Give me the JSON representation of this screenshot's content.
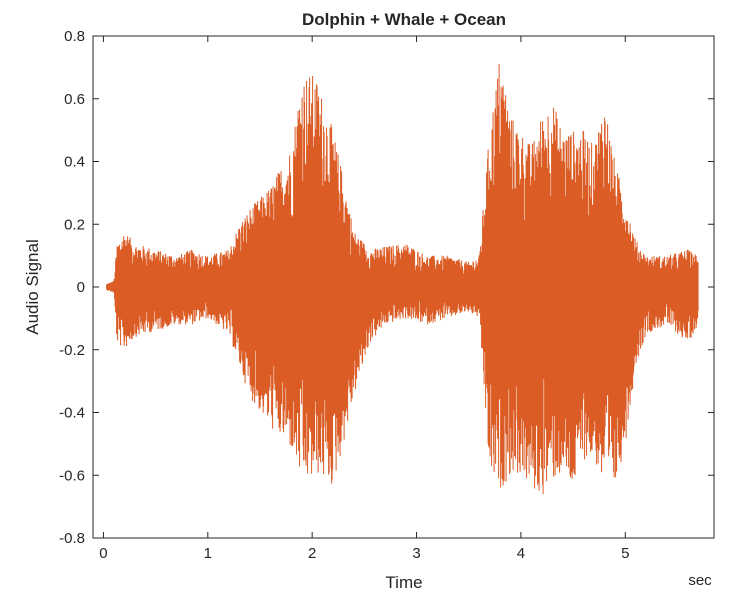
{
  "chart_data": {
    "type": "line",
    "title": "Dolphin + Whale + Ocean",
    "xlabel": "Time",
    "ylabel": "Audio Signal",
    "x_unit_label": "sec",
    "xlim": [
      -0.1,
      5.85
    ],
    "ylim": [
      -0.8,
      0.8
    ],
    "xticks": [
      0,
      1,
      2,
      3,
      4,
      5
    ],
    "yticks": [
      -0.8,
      -0.6,
      -0.4,
      -0.2,
      0,
      0.2,
      0.4,
      0.6,
      0.8
    ],
    "grid": false,
    "series": [
      {
        "color": "#D95319",
        "x_start": 0.03,
        "x_end": 5.7,
        "envelope": {
          "x": [
            0.03,
            0.1,
            0.13,
            0.2,
            0.3,
            0.5,
            0.7,
            0.85,
            1.0,
            1.2,
            1.3,
            1.4,
            1.6,
            1.8,
            1.9,
            2.0,
            2.05,
            2.2,
            2.3,
            2.4,
            2.55,
            2.7,
            2.9,
            3.1,
            3.3,
            3.5,
            3.6,
            3.7,
            3.8,
            3.9,
            4.0,
            4.1,
            4.2,
            4.3,
            4.4,
            4.5,
            4.6,
            4.7,
            4.8,
            4.9,
            5.0,
            5.1,
            5.2,
            5.4,
            5.6,
            5.7
          ],
          "max": [
            0.01,
            0.02,
            0.14,
            0.18,
            0.14,
            0.12,
            0.1,
            0.12,
            0.1,
            0.12,
            0.2,
            0.25,
            0.32,
            0.45,
            0.68,
            0.68,
            0.66,
            0.5,
            0.35,
            0.18,
            0.12,
            0.13,
            0.14,
            0.1,
            0.1,
            0.08,
            0.1,
            0.5,
            0.75,
            0.55,
            0.5,
            0.45,
            0.55,
            0.6,
            0.5,
            0.5,
            0.5,
            0.45,
            0.6,
            0.4,
            0.28,
            0.15,
            0.1,
            0.1,
            0.12,
            0.1
          ],
          "min": [
            -0.01,
            -0.02,
            -0.18,
            -0.2,
            -0.16,
            -0.14,
            -0.12,
            -0.12,
            -0.1,
            -0.15,
            -0.25,
            -0.35,
            -0.45,
            -0.52,
            -0.62,
            -0.62,
            -0.6,
            -0.64,
            -0.5,
            -0.35,
            -0.18,
            -0.12,
            -0.1,
            -0.12,
            -0.1,
            -0.08,
            -0.1,
            -0.6,
            -0.65,
            -0.6,
            -0.6,
            -0.65,
            -0.67,
            -0.62,
            -0.6,
            -0.65,
            -0.55,
            -0.55,
            -0.65,
            -0.65,
            -0.5,
            -0.25,
            -0.15,
            -0.12,
            -0.18,
            -0.12
          ]
        }
      }
    ]
  }
}
